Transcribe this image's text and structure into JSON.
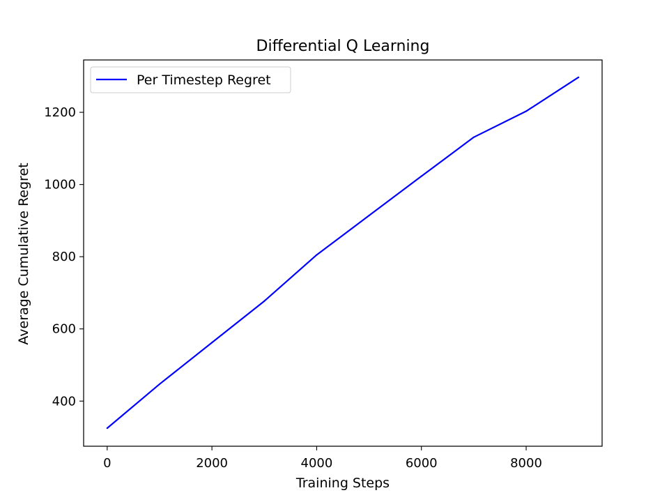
{
  "chart_data": {
    "type": "line",
    "title": "Differential Q Learning",
    "xlabel": "Training Steps",
    "ylabel": "Average Cumulative Regret",
    "xlim": [
      -450,
      9450
    ],
    "ylim": [
      275,
      1345
    ],
    "xticks": [
      0,
      2000,
      4000,
      6000,
      8000
    ],
    "yticks": [
      400,
      600,
      800,
      1000,
      1200
    ],
    "xtick_labels": [
      "0",
      "2000",
      "4000",
      "6000",
      "8000"
    ],
    "ytick_labels": [
      "400",
      "600",
      "800",
      "1000",
      "1200"
    ],
    "grid": false,
    "legend_position": "top-left",
    "series": [
      {
        "name": "Per Timestep Regret",
        "color": "#0000ff",
        "x": [
          0,
          1000,
          2000,
          3000,
          4000,
          5000,
          6000,
          7000,
          8000,
          9000
        ],
        "y": [
          325,
          447,
          562,
          677,
          805,
          914,
          1023,
          1131,
          1203,
          1297
        ]
      }
    ]
  }
}
